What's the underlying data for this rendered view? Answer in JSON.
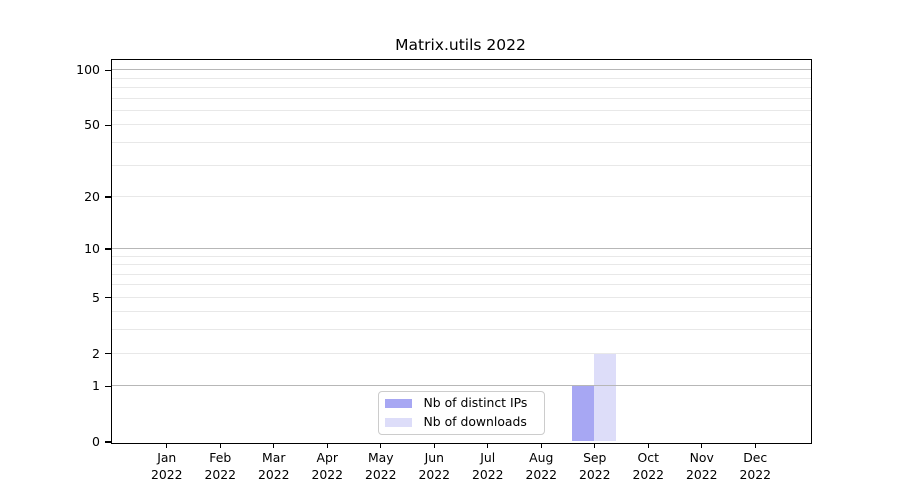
{
  "chart_data": {
    "type": "bar",
    "title": "Matrix.utils 2022",
    "x_tick_months": [
      "Jan",
      "Feb",
      "Mar",
      "Apr",
      "May",
      "Jun",
      "Jul",
      "Aug",
      "Sep",
      "Oct",
      "Nov",
      "Dec"
    ],
    "x_tick_year": "2022",
    "series": [
      {
        "name": "Nb of distinct IPs",
        "color": "#a7a7f3",
        "values": [
          0,
          0,
          0,
          0,
          0,
          0,
          0,
          0,
          1,
          0,
          0,
          0
        ]
      },
      {
        "name": "Nb of downloads",
        "color": "#ddddf9",
        "values": [
          0,
          0,
          0,
          0,
          0,
          0,
          0,
          0,
          2,
          0,
          0,
          0
        ]
      }
    ],
    "y_scale": "log10(value+1)",
    "y_major_ticks": [
      0,
      1,
      2,
      5,
      10,
      20,
      50,
      100
    ],
    "y_minor_gridlines": [
      3,
      4,
      6,
      7,
      8,
      9,
      30,
      40,
      60,
      70,
      80,
      90
    ],
    "y_emphasized_gridlines": [
      1,
      10,
      100
    ],
    "ylim": [
      0,
      114
    ],
    "grid": "horizontal",
    "legend_position": "lower center",
    "colors": {
      "grid_minor": "#e8e8e8",
      "grid_emphasized": "#b7b7b7",
      "spine": "#000000",
      "text": "#000000",
      "legend_border": "#cccccc",
      "background": "#ffffff"
    }
  }
}
